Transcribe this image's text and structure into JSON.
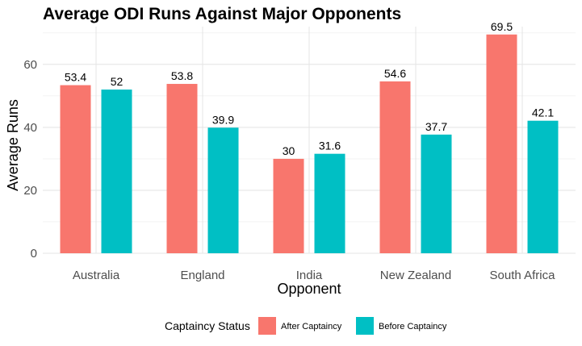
{
  "chart_data": {
    "type": "bar",
    "title": "Average ODI Runs Against Major Opponents",
    "xlabel": "Opponent",
    "ylabel": "Average Runs",
    "categories": [
      "Australia",
      "England",
      "India",
      "New Zealand",
      "South Africa"
    ],
    "series": [
      {
        "name": "After Captaincy",
        "color": "#F8766D",
        "values": [
          53.4,
          53.8,
          30,
          54.6,
          69.5
        ]
      },
      {
        "name": "Before Captaincy",
        "color": "#00BFC4",
        "values": [
          52,
          39.9,
          31.6,
          37.7,
          42.1
        ]
      }
    ],
    "ylim": [
      0,
      72
    ],
    "yticks": [
      0,
      20,
      40,
      60
    ],
    "grid": true,
    "legend": {
      "title": "Captaincy Status",
      "position": "bottom"
    }
  }
}
